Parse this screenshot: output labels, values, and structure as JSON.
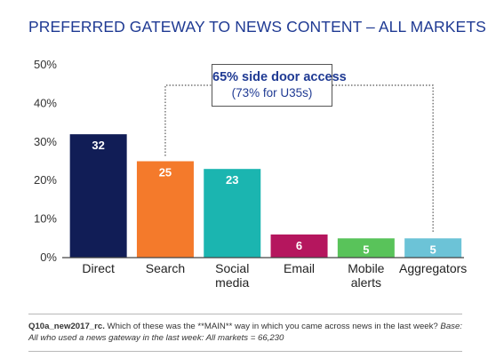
{
  "chart_data": {
    "type": "bar",
    "title": "PREFERRED GATEWAY TO NEWS CONTENT – ALL MARKETS",
    "xlabel": "",
    "ylabel": "",
    "ylim": [
      0,
      50
    ],
    "yticks": [
      "0%",
      "10%",
      "20%",
      "30%",
      "40%",
      "50%"
    ],
    "ytick_values": [
      0,
      10,
      20,
      30,
      40,
      50
    ],
    "grid": false,
    "categories": [
      [
        "Direct"
      ],
      [
        "Search"
      ],
      [
        "Social",
        "media"
      ],
      [
        "Email"
      ],
      [
        "Mobile",
        "alerts"
      ],
      [
        "Aggregators"
      ]
    ],
    "values": [
      32,
      25,
      23,
      6,
      5,
      5
    ],
    "data_labels": [
      "32",
      "25",
      "23",
      "6",
      "5",
      "5"
    ],
    "colors": [
      "#111d56",
      "#f47a2b",
      "#1bb5b0",
      "#b5165e",
      "#59c35a",
      "#6cc3d7"
    ],
    "annotation": {
      "main": "65% side door access",
      "sub": "(73% for U35s)"
    }
  },
  "footnote": {
    "question_id": "Q10a_new2017_rc.",
    "question_text": " Which of these was the **MAIN** way in which you came across news in the last week? ",
    "base": "Base: All who used a news gateway in the last week: All markets = 66,230"
  }
}
